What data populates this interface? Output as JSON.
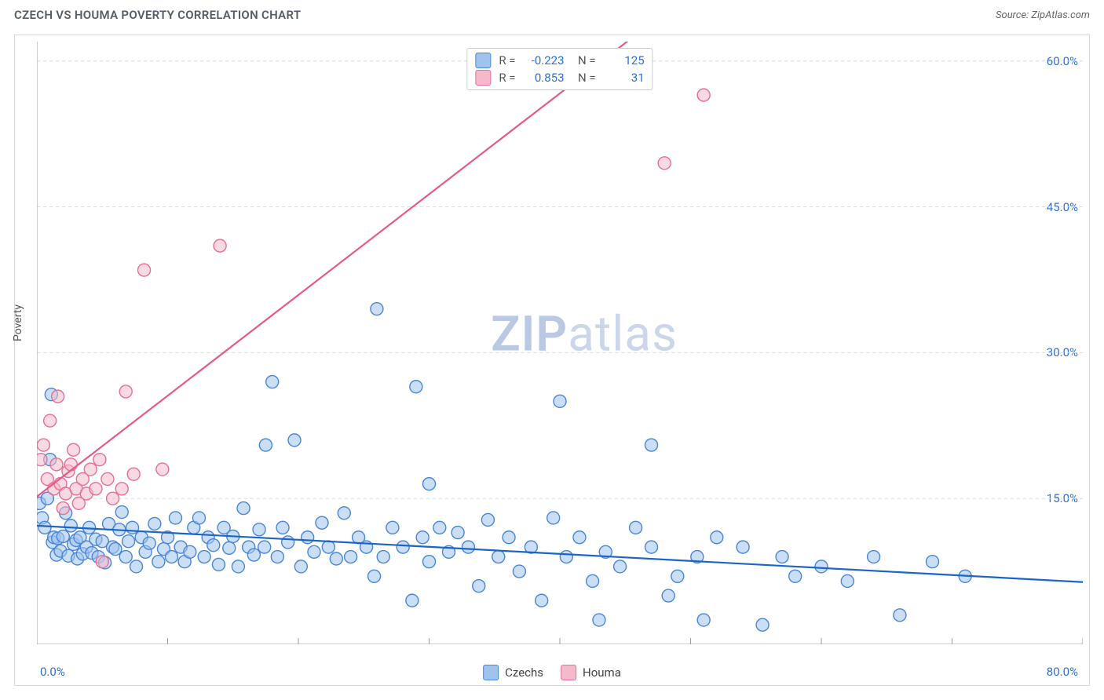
{
  "header": {
    "title": "CZECH VS HOUMA POVERTY CORRELATION CHART",
    "source": "Source: ZipAtlas.com"
  },
  "watermark": {
    "bold": "ZIP",
    "rest": "atlas"
  },
  "chart": {
    "type": "scatter",
    "ylabel": "Poverty",
    "xlim": [
      0,
      80
    ],
    "ylim": [
      0,
      62
    ],
    "xtick_positions": [
      0,
      10,
      20,
      30,
      40,
      50,
      60,
      70,
      80
    ],
    "xtick_labels": {
      "first": "0.0%",
      "last": "80.0%"
    },
    "ytick_values": [
      15,
      30,
      45,
      60
    ],
    "ytick_labels": [
      "15.0%",
      "30.0%",
      "45.0%",
      "60.0%"
    ],
    "grid_color": "#d9dbde",
    "axis_color": "#9aa0a8",
    "background_color": "#ffffff",
    "marker_radius": 8,
    "marker_stroke_width": 1.4,
    "line_width": 2.2,
    "series": [
      {
        "name": "Czechs",
        "color_fill": "#9fc3ec",
        "color_stroke": "#4a86d6",
        "fill_opacity": 0.55,
        "line_color": "#1b65c9",
        "trend": {
          "x1": 0,
          "y1": 12.2,
          "x2": 80,
          "y2": 6.4
        },
        "R": "-0.223",
        "N": "125",
        "points": [
          [
            0.2,
            14.5
          ],
          [
            0.4,
            13.0
          ],
          [
            0.6,
            12.0
          ],
          [
            0.8,
            15.0
          ],
          [
            1.0,
            19.0
          ],
          [
            1.1,
            25.7
          ],
          [
            1.2,
            10.5
          ],
          [
            1.3,
            11.0
          ],
          [
            1.5,
            9.2
          ],
          [
            1.6,
            10.9
          ],
          [
            1.8,
            9.6
          ],
          [
            2.0,
            11.1
          ],
          [
            2.2,
            13.5
          ],
          [
            2.4,
            9.1
          ],
          [
            2.6,
            12.2
          ],
          [
            2.8,
            10.3
          ],
          [
            3.0,
            10.7
          ],
          [
            3.1,
            8.8
          ],
          [
            3.3,
            11.0
          ],
          [
            3.5,
            9.3
          ],
          [
            3.8,
            10.0
          ],
          [
            4.0,
            12.0
          ],
          [
            4.2,
            9.4
          ],
          [
            4.5,
            10.8
          ],
          [
            4.7,
            9.0
          ],
          [
            5.0,
            10.6
          ],
          [
            5.2,
            8.4
          ],
          [
            5.5,
            12.4
          ],
          [
            5.8,
            10.0
          ],
          [
            6.0,
            9.8
          ],
          [
            6.3,
            11.8
          ],
          [
            6.5,
            13.6
          ],
          [
            6.8,
            9.0
          ],
          [
            7.0,
            10.6
          ],
          [
            7.3,
            12.0
          ],
          [
            7.6,
            8.0
          ],
          [
            8.0,
            11.0
          ],
          [
            8.3,
            9.5
          ],
          [
            8.6,
            10.4
          ],
          [
            9.0,
            12.4
          ],
          [
            9.3,
            8.5
          ],
          [
            9.7,
            9.8
          ],
          [
            10.0,
            11.0
          ],
          [
            10.3,
            9.0
          ],
          [
            10.6,
            13.0
          ],
          [
            11.0,
            10.0
          ],
          [
            11.3,
            8.5
          ],
          [
            11.7,
            9.5
          ],
          [
            12.0,
            12.0
          ],
          [
            12.4,
            13.0
          ],
          [
            12.8,
            9.0
          ],
          [
            13.1,
            11.0
          ],
          [
            13.5,
            10.2
          ],
          [
            13.9,
            8.2
          ],
          [
            14.3,
            12.0
          ],
          [
            14.7,
            9.9
          ],
          [
            15.0,
            11.1
          ],
          [
            15.4,
            8.0
          ],
          [
            15.8,
            14.0
          ],
          [
            16.2,
            10.0
          ],
          [
            16.6,
            9.2
          ],
          [
            17.0,
            11.8
          ],
          [
            17.4,
            10.0
          ],
          [
            17.5,
            20.5
          ],
          [
            18.0,
            27.0
          ],
          [
            18.4,
            9.0
          ],
          [
            18.8,
            12.0
          ],
          [
            19.2,
            10.5
          ],
          [
            19.7,
            21.0
          ],
          [
            20.2,
            8.0
          ],
          [
            20.7,
            11.0
          ],
          [
            21.2,
            9.5
          ],
          [
            21.8,
            12.5
          ],
          [
            22.3,
            10.0
          ],
          [
            22.9,
            8.8
          ],
          [
            23.5,
            13.5
          ],
          [
            24.0,
            9.0
          ],
          [
            24.6,
            11.0
          ],
          [
            25.2,
            10.0
          ],
          [
            25.8,
            7.0
          ],
          [
            26.0,
            34.5
          ],
          [
            26.5,
            9.0
          ],
          [
            27.2,
            12.0
          ],
          [
            28.0,
            10.0
          ],
          [
            28.7,
            4.5
          ],
          [
            29.0,
            26.5
          ],
          [
            29.5,
            11.0
          ],
          [
            30.0,
            8.5
          ],
          [
            30.0,
            16.5
          ],
          [
            30.8,
            12.0
          ],
          [
            31.5,
            9.5
          ],
          [
            32.2,
            11.5
          ],
          [
            33.0,
            10.0
          ],
          [
            33.8,
            6.0
          ],
          [
            34.5,
            12.8
          ],
          [
            35.3,
            9.0
          ],
          [
            36.1,
            11.0
          ],
          [
            36.9,
            7.5
          ],
          [
            37.8,
            10.0
          ],
          [
            38.6,
            4.5
          ],
          [
            39.5,
            13.0
          ],
          [
            40.0,
            25.0
          ],
          [
            40.5,
            9.0
          ],
          [
            41.5,
            11.0
          ],
          [
            42.5,
            6.5
          ],
          [
            43.0,
            2.5
          ],
          [
            43.5,
            9.5
          ],
          [
            44.6,
            8.0
          ],
          [
            45.8,
            12.0
          ],
          [
            47.0,
            20.5
          ],
          [
            47.0,
            10.0
          ],
          [
            48.3,
            5.0
          ],
          [
            49.0,
            7.0
          ],
          [
            50.5,
            9.0
          ],
          [
            51.0,
            2.5
          ],
          [
            52.0,
            11.0
          ],
          [
            54.0,
            10.0
          ],
          [
            55.5,
            2.0
          ],
          [
            57.0,
            9.0
          ],
          [
            58.0,
            7.0
          ],
          [
            60.0,
            8.0
          ],
          [
            62.0,
            6.5
          ],
          [
            64.0,
            9.0
          ],
          [
            66.0,
            3.0
          ],
          [
            68.5,
            8.5
          ],
          [
            71.0,
            7.0
          ]
        ]
      },
      {
        "name": "Houma",
        "color_fill": "#f4b9cb",
        "color_stroke": "#e76f96",
        "fill_opacity": 0.55,
        "line_color": "#e85a85",
        "trend": {
          "x1": 0,
          "y1": 15.2,
          "x2": 49,
          "y2": 66
        },
        "R": "0.853",
        "N": "31",
        "points": [
          [
            0.3,
            19.0
          ],
          [
            0.5,
            20.5
          ],
          [
            0.8,
            17.0
          ],
          [
            1.0,
            23.0
          ],
          [
            1.3,
            16.0
          ],
          [
            1.5,
            18.5
          ],
          [
            1.6,
            25.5
          ],
          [
            1.8,
            16.5
          ],
          [
            2.0,
            14.0
          ],
          [
            2.2,
            15.5
          ],
          [
            2.4,
            17.8
          ],
          [
            2.6,
            18.5
          ],
          [
            2.8,
            20.0
          ],
          [
            3.0,
            16.0
          ],
          [
            3.2,
            14.5
          ],
          [
            3.5,
            17.0
          ],
          [
            3.8,
            15.5
          ],
          [
            4.1,
            18.0
          ],
          [
            4.5,
            16.0
          ],
          [
            4.8,
            19.0
          ],
          [
            5.0,
            8.5
          ],
          [
            5.4,
            17.0
          ],
          [
            5.8,
            15.0
          ],
          [
            6.5,
            16.0
          ],
          [
            6.8,
            26.0
          ],
          [
            7.4,
            17.5
          ],
          [
            8.2,
            38.5
          ],
          [
            9.6,
            18.0
          ],
          [
            14.0,
            41.0
          ],
          [
            48.0,
            49.5
          ],
          [
            51.0,
            56.5
          ]
        ]
      }
    ],
    "legend_bottom": [
      {
        "label": "Czechs",
        "fill": "#9fc3ec",
        "stroke": "#4a86d6"
      },
      {
        "label": "Houma",
        "fill": "#f4b9cb",
        "stroke": "#e76f96"
      }
    ]
  }
}
